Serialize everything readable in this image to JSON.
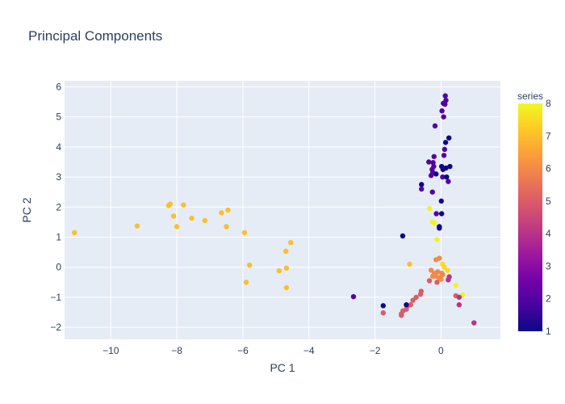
{
  "chart_data": {
    "type": "scatter",
    "title": "Principal Components",
    "xlabel": "PC 1",
    "ylabel": "PC 2",
    "xlim": [
      -11.4,
      1.8
    ],
    "ylim": [
      -2.4,
      6.2
    ],
    "x_ticks": [
      -10,
      -8,
      -6,
      -4,
      -2,
      0
    ],
    "y_ticks": [
      -2,
      -1,
      0,
      1,
      2,
      3,
      4,
      5,
      6
    ],
    "x_tick_labels": [
      "−10",
      "−8",
      "−6",
      "−4",
      "−2",
      "0"
    ],
    "y_tick_labels": [
      "−2",
      "−1",
      "0",
      "1",
      "2",
      "3",
      "4",
      "5",
      "6"
    ],
    "grid": true,
    "colorbar": {
      "title": "series",
      "min": 1,
      "max": 8,
      "ticks": [
        1,
        2,
        3,
        4,
        5,
        6,
        7,
        8
      ],
      "tick_labels": [
        "1",
        "2",
        "3",
        "4",
        "5",
        "6",
        "7",
        "8"
      ],
      "colorscale": [
        "#0d0887",
        "#46039f",
        "#7201a8",
        "#9c179e",
        "#bd3786",
        "#d8576b",
        "#ed7953",
        "#fb9f3a",
        "#fdca26",
        "#f0f921"
      ]
    },
    "points": [
      {
        "x": 0.13,
        "y": 5.7,
        "c": 2
      },
      {
        "x": 0.15,
        "y": 5.55,
        "c": 2
      },
      {
        "x": 0.12,
        "y": 5.42,
        "c": 2
      },
      {
        "x": 0.07,
        "y": 5.45,
        "c": 2
      },
      {
        "x": 0.03,
        "y": 5.2,
        "c": 2
      },
      {
        "x": 0.08,
        "y": 5.0,
        "c": 2
      },
      {
        "x": -0.18,
        "y": 4.7,
        "c": 2
      },
      {
        "x": 0.24,
        "y": 4.3,
        "c": 1
      },
      {
        "x": 0.14,
        "y": 4.15,
        "c": 1
      },
      {
        "x": 0.11,
        "y": 3.92,
        "c": 2
      },
      {
        "x": 0.09,
        "y": 3.72,
        "c": 2
      },
      {
        "x": -0.21,
        "y": 3.68,
        "c": 2
      },
      {
        "x": -0.37,
        "y": 3.5,
        "c": 2
      },
      {
        "x": -0.24,
        "y": 3.48,
        "c": 2
      },
      {
        "x": -0.22,
        "y": 3.35,
        "c": 2
      },
      {
        "x": -0.27,
        "y": 3.25,
        "c": 2
      },
      {
        "x": -0.25,
        "y": 3.15,
        "c": 2
      },
      {
        "x": -0.3,
        "y": 3.05,
        "c": 2
      },
      {
        "x": -0.15,
        "y": 3.1,
        "c": 1
      },
      {
        "x": 0.27,
        "y": 3.35,
        "c": 1
      },
      {
        "x": 0.02,
        "y": 3.35,
        "c": 1
      },
      {
        "x": 0.06,
        "y": 3.25,
        "c": 1
      },
      {
        "x": 0.15,
        "y": 3.3,
        "c": 1
      },
      {
        "x": 0.05,
        "y": 3.0,
        "c": 2
      },
      {
        "x": 0.17,
        "y": 3.0,
        "c": 1
      },
      {
        "x": 0.22,
        "y": 2.85,
        "c": 2
      },
      {
        "x": -0.59,
        "y": 2.75,
        "c": 1
      },
      {
        "x": -0.59,
        "y": 2.6,
        "c": 2
      },
      {
        "x": -0.26,
        "y": 2.5,
        "c": 2
      },
      {
        "x": 0.01,
        "y": 2.2,
        "c": 1
      },
      {
        "x": -0.14,
        "y": 1.78,
        "c": 2
      },
      {
        "x": 0.02,
        "y": 1.78,
        "c": 1
      },
      {
        "x": -0.05,
        "y": 1.35,
        "c": 1
      },
      {
        "x": -0.05,
        "y": 1.3,
        "c": 1
      },
      {
        "x": -1.16,
        "y": 1.04,
        "c": 1
      },
      {
        "x": -0.35,
        "y": 1.95,
        "c": 7.9
      },
      {
        "x": -0.26,
        "y": 1.5,
        "c": 7.9
      },
      {
        "x": -0.2,
        "y": 1.47,
        "c": 7.9
      },
      {
        "x": -0.12,
        "y": 0.92,
        "c": 7.9
      },
      {
        "x": -11.1,
        "y": 1.15,
        "c": 7
      },
      {
        "x": -9.2,
        "y": 1.37,
        "c": 7
      },
      {
        "x": -8.2,
        "y": 2.1,
        "c": 7
      },
      {
        "x": -8.25,
        "y": 2.05,
        "c": 7
      },
      {
        "x": -8.1,
        "y": 1.7,
        "c": 7
      },
      {
        "x": -7.8,
        "y": 2.07,
        "c": 7
      },
      {
        "x": -8.0,
        "y": 1.35,
        "c": 7
      },
      {
        "x": -7.55,
        "y": 1.63,
        "c": 7
      },
      {
        "x": -7.15,
        "y": 1.55,
        "c": 7
      },
      {
        "x": -6.65,
        "y": 1.81,
        "c": 7
      },
      {
        "x": -6.45,
        "y": 1.9,
        "c": 7
      },
      {
        "x": -6.5,
        "y": 1.35,
        "c": 7
      },
      {
        "x": -5.95,
        "y": 1.15,
        "c": 7
      },
      {
        "x": -4.55,
        "y": 0.82,
        "c": 7
      },
      {
        "x": -4.7,
        "y": 0.53,
        "c": 7
      },
      {
        "x": -5.8,
        "y": 0.07,
        "c": 7
      },
      {
        "x": -4.68,
        "y": -0.03,
        "c": 7
      },
      {
        "x": -4.9,
        "y": -0.12,
        "c": 7
      },
      {
        "x": -5.9,
        "y": -0.5,
        "c": 7
      },
      {
        "x": -4.68,
        "y": -0.68,
        "c": 7
      },
      {
        "x": -0.95,
        "y": 0.1,
        "c": 7
      },
      {
        "x": -0.15,
        "y": 0.25,
        "c": 6
      },
      {
        "x": -0.05,
        "y": 0.3,
        "c": 6
      },
      {
        "x": 0.05,
        "y": 0.1,
        "c": 7.5
      },
      {
        "x": 0.1,
        "y": 0.0,
        "c": 7.5
      },
      {
        "x": 0.2,
        "y": -0.1,
        "c": 7.5
      },
      {
        "x": -0.3,
        "y": -0.1,
        "c": 6
      },
      {
        "x": -0.2,
        "y": -0.2,
        "c": 6
      },
      {
        "x": -0.15,
        "y": -0.3,
        "c": 6
      },
      {
        "x": -0.05,
        "y": -0.35,
        "c": 6
      },
      {
        "x": 0.0,
        "y": -0.4,
        "c": 6
      },
      {
        "x": -0.1,
        "y": -0.15,
        "c": 6
      },
      {
        "x": -0.25,
        "y": -0.3,
        "c": 6
      },
      {
        "x": 0.02,
        "y": -0.2,
        "c": 6
      },
      {
        "x": -0.35,
        "y": -0.45,
        "c": 5
      },
      {
        "x": -0.12,
        "y": -0.5,
        "c": 5
      },
      {
        "x": 0.05,
        "y": -0.25,
        "c": 6
      },
      {
        "x": 0.25,
        "y": -0.32,
        "c": 4
      },
      {
        "x": 0.22,
        "y": -0.42,
        "c": 4
      },
      {
        "x": 0.45,
        "y": -0.6,
        "c": 7.9
      },
      {
        "x": 0.65,
        "y": -0.92,
        "c": 7.9
      },
      {
        "x": 0.45,
        "y": -0.95,
        "c": 5
      },
      {
        "x": 0.55,
        "y": -1.0,
        "c": 4
      },
      {
        "x": 0.55,
        "y": -1.25,
        "c": 4
      },
      {
        "x": 1.0,
        "y": -1.85,
        "c": 4
      },
      {
        "x": -0.6,
        "y": -0.8,
        "c": 5
      },
      {
        "x": -0.62,
        "y": -0.9,
        "c": 5
      },
      {
        "x": -0.75,
        "y": -1.0,
        "c": 5
      },
      {
        "x": -0.85,
        "y": -1.1,
        "c": 5
      },
      {
        "x": -0.92,
        "y": -1.25,
        "c": 5
      },
      {
        "x": -1.02,
        "y": -1.3,
        "c": 5
      },
      {
        "x": -1.05,
        "y": -1.4,
        "c": 5
      },
      {
        "x": -1.15,
        "y": -1.45,
        "c": 5
      },
      {
        "x": -1.2,
        "y": -1.55,
        "c": 5
      },
      {
        "x": -1.2,
        "y": -1.6,
        "c": 5
      },
      {
        "x": -1.75,
        "y": -1.52,
        "c": 5
      },
      {
        "x": -1.05,
        "y": -1.25,
        "c": 1
      },
      {
        "x": -1.75,
        "y": -1.28,
        "c": 1
      },
      {
        "x": -2.65,
        "y": -0.98,
        "c": 2
      }
    ]
  }
}
